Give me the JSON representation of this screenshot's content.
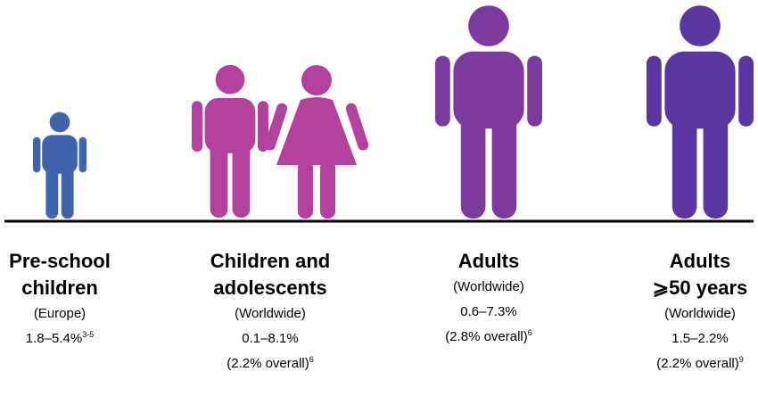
{
  "groups": [
    {
      "title_lines": [
        "Pre-school",
        "children"
      ],
      "region": "(Europe)",
      "range": "1.8–5.4%",
      "range_ref": "3-5"
    },
    {
      "title_lines": [
        "Children and",
        "adolescents"
      ],
      "region": "(Worldwide)",
      "range": "0.1–8.1%",
      "overall": "(2.2% overall)",
      "overall_ref": "6"
    },
    {
      "title_lines": [
        "Adults"
      ],
      "region": "(Worldwide)",
      "range": "0.6–7.3%",
      "overall": "(2.8% overall)",
      "overall_ref": "6"
    },
    {
      "title_lines": [
        "Adults",
        "⩾50 years"
      ],
      "region": "(Worldwide)",
      "range": "1.5–2.2%",
      "overall": "(2.2% overall)",
      "overall_ref": "9"
    }
  ]
}
